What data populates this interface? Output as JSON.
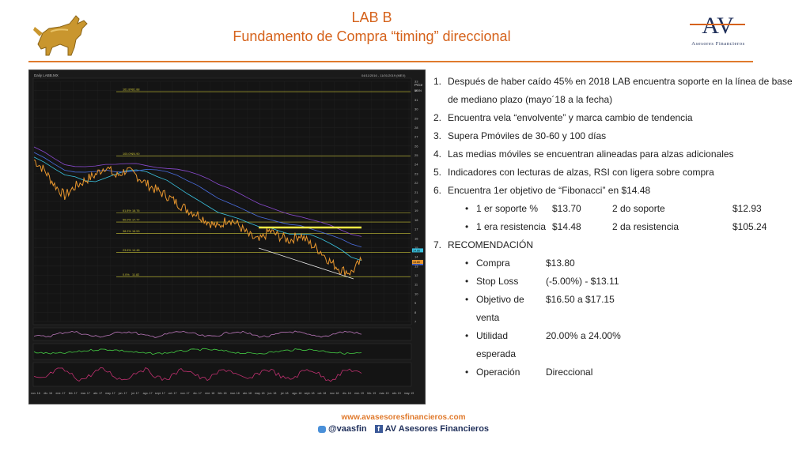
{
  "header": {
    "title_line1": "LAB B",
    "title_line2": "Fundamento de Compra “timing” direccional",
    "logo_letters": "AV",
    "logo_subtitle": "Asesores Financieros"
  },
  "chart_header": {
    "window_label": "Daily LABB.MX",
    "date_range": "04/11/2016 - 11/01/2019 (MEX)",
    "price_label": "Price",
    "currency": "MXN"
  },
  "chart_data": {
    "type": "line",
    "series": [
      {
        "name": "LABB.MX, Trade Price",
        "values": [
          24.5,
          23.4,
          21.8,
          20.6,
          21.6,
          22.3,
          22.9,
          23.8,
          22.7,
          23.4,
          22.8,
          21.9,
          21.2,
          20.6,
          19.8,
          19.1,
          18.6,
          17.8,
          17.2,
          18.2,
          17.4,
          16.3,
          15.7,
          16.8,
          16.2,
          15.8,
          16.4,
          15.4,
          14.6,
          13.4,
          12.6,
          12.3,
          13.6
        ]
      }
    ],
    "fibonacci_levels": [
      {
        "label": "161.8%",
        "price": 31.88
      },
      {
        "label": "100.0%",
        "price": 24.9
      },
      {
        "label": "61.8%",
        "price": 18.76
      },
      {
        "label": "50.0%",
        "price": 17.77
      },
      {
        "label": "38.2%",
        "price": 16.53
      },
      {
        "label": "23.6%",
        "price": 14.48
      },
      {
        "label": "0.0%",
        "price": 11.82
      }
    ],
    "y_ticks": [
      33,
      32,
      31,
      30,
      29,
      28,
      27,
      26,
      25,
      24,
      23,
      22,
      21,
      20,
      19,
      18,
      17,
      16,
      15,
      14,
      13,
      12,
      11,
      10,
      9,
      8,
      7
    ],
    "x_ticks": [
      "nov. 16",
      "dic. 16",
      "ene. 17",
      "feb. 17",
      "mar. 17",
      "abr. 17",
      "may. 17",
      "jun. 17",
      "jul. 17",
      "ago. 17",
      "sept. 17",
      "oct. 17",
      "nov. 17",
      "dic. 17",
      "ene. 18",
      "feb. 18",
      "mar. 18",
      "abr. 18",
      "may. 18",
      "jun. 18",
      "jul. 18",
      "ago. 18",
      "sept. 18",
      "oct. 18",
      "nov. 18",
      "dic. 18",
      "ene. 19",
      "feb. 19",
      "mar. 19",
      "abr. 19",
      "may. 19"
    ],
    "ylim": [
      7,
      33
    ],
    "price_tags": [
      "14.66",
      "13.48",
      "13.53",
      "13.80"
    ],
    "colors": {
      "price": "#e8962e",
      "fib": "#c8c236",
      "support": "#ffee44",
      "ma1": "#3ac2e0",
      "ma2": "#4a6de0",
      "ma3": "#8a4ad0",
      "trend": "#e8e8e8",
      "rsi": "#b7b",
      "macd": "#4c4",
      "stoch": "#c03070"
    }
  },
  "points": [
    {
      "num": "1.",
      "text": "Después de haber caído 45% en 2018 LAB encuentra soporte en la línea de base de mediano plazo (mayo´18 a la fecha)"
    },
    {
      "num": "2.",
      "text": "Encuentra vela “envolvente” y marca cambio de tendencia"
    },
    {
      "num": "3.",
      "text": "Supera Pmóviles de 30-60 y 100 días"
    },
    {
      "num": "4.",
      "text": "Las medias móviles se encuentran alineadas para alzas adicionales"
    },
    {
      "num": "5.",
      "text": "Indicadores con lecturas de alzas, RSI con ligera sobre compra"
    },
    {
      "num": "6.",
      "text": "Encuentra 1er objetivo de “Fibonacci” en $14.48"
    }
  ],
  "levels": [
    {
      "label1": "1 er soporte %",
      "value1": "$13.70",
      "label2": "2 do soporte",
      "value2": "$12.93"
    },
    {
      "label1": "1 era resistencia",
      "value1": "$14.48",
      "label2": "2 da resistencia",
      "value2": "$105.24"
    }
  ],
  "recommendation": {
    "num": "7.",
    "title": "RECOMENDACIÓN",
    "items": [
      {
        "label": "Compra",
        "value": "$13.80"
      },
      {
        "label": "Stop Loss",
        "value": "(-5.00%) - $13.11"
      },
      {
        "label": "Objetivo de venta",
        "value": "$16.50 a $17.15"
      },
      {
        "label": "Utilidad esperada",
        "value": "20.00% a 24.00%"
      },
      {
        "label": "Operación",
        "value": "Direccional"
      }
    ]
  },
  "footer": {
    "url": "www.avasesoresfinancieros.com",
    "twitter": "@vaasfin",
    "facebook": "AV Asesores Financieros"
  }
}
